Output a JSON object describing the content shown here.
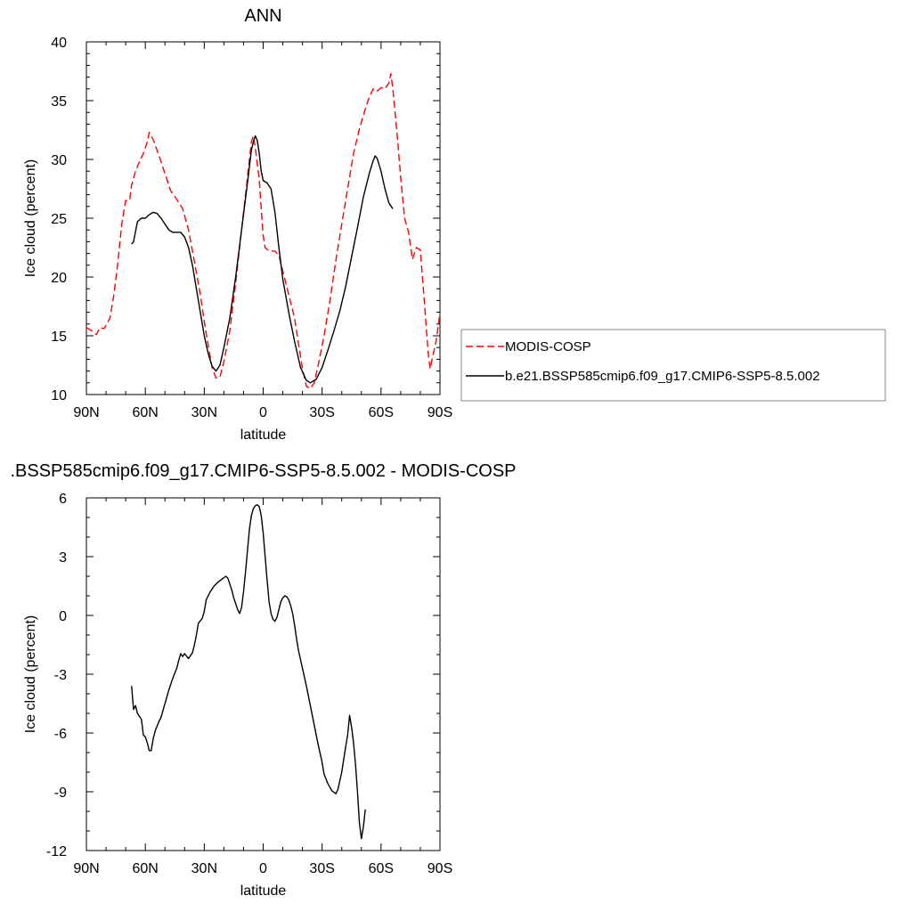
{
  "chart_data": [
    {
      "type": "line",
      "title": "ANN",
      "xlabel": "latitude",
      "ylabel": "Ice cloud (percent)",
      "xlim": [
        90,
        -90
      ],
      "ylim": [
        10,
        40
      ],
      "x_ticks": [
        90,
        60,
        30,
        0,
        -30,
        -60,
        -90
      ],
      "x_tick_labels": [
        "90N",
        "60N",
        "30N",
        "0",
        "30S",
        "60S",
        "90S"
      ],
      "y_ticks": [
        10,
        15,
        20,
        25,
        30,
        35,
        40
      ],
      "y_tick_labels": [
        "10",
        "15",
        "20",
        "25",
        "30",
        "35",
        "40"
      ],
      "legend_position": "right",
      "series": [
        {
          "name": "MODIS-COSP",
          "color": "#ff0000",
          "dash": "dashed",
          "points": [
            [
              90,
              15.7
            ],
            [
              87,
              15.4
            ],
            [
              85,
              15.1
            ],
            [
              83,
              15.7
            ],
            [
              81,
              15.6
            ],
            [
              78,
              16.5
            ],
            [
              76,
              18.5
            ],
            [
              74,
              21.2
            ],
            [
              72,
              24.5
            ],
            [
              70,
              26.5
            ],
            [
              68,
              26.5
            ],
            [
              67,
              27.8
            ],
            [
              65,
              29.0
            ],
            [
              63,
              29.8
            ],
            [
              61,
              30.5
            ],
            [
              59,
              31.5
            ],
            [
              58,
              32.3
            ],
            [
              56,
              31.7
            ],
            [
              53,
              30.3
            ],
            [
              50,
              28.8
            ],
            [
              47,
              27.3
            ],
            [
              44,
              26.6
            ],
            [
              41,
              25.8
            ],
            [
              38,
              24.0
            ],
            [
              35,
              21.3
            ],
            [
              32,
              18.5
            ],
            [
              30,
              16.2
            ],
            [
              28,
              14.2
            ],
            [
              26,
              12.3
            ],
            [
              24,
              11.4
            ],
            [
              22,
              11.5
            ],
            [
              20,
              12.8
            ],
            [
              17,
              15.4
            ],
            [
              14,
              19.5
            ],
            [
              11,
              24.0
            ],
            [
              8,
              28.5
            ],
            [
              6,
              31.5
            ],
            [
              5,
              32.0
            ],
            [
              4,
              31.0
            ],
            [
              3,
              29.6
            ],
            [
              2,
              28.3
            ],
            [
              1,
              25.8
            ],
            [
              0,
              23.5
            ],
            [
              -1,
              22.5
            ],
            [
              -3,
              22.2
            ],
            [
              -6,
              22.2
            ],
            [
              -8,
              21.8
            ],
            [
              -10,
              20.5
            ],
            [
              -13,
              18.5
            ],
            [
              -16,
              16.5
            ],
            [
              -18,
              14.3
            ],
            [
              -20,
              12.2
            ],
            [
              -22,
              10.7
            ],
            [
              -24,
              10.5
            ],
            [
              -26,
              11.0
            ],
            [
              -28,
              12.5
            ],
            [
              -31,
              15.0
            ],
            [
              -34,
              18.0
            ],
            [
              -37,
              21.4
            ],
            [
              -40,
              24.5
            ],
            [
              -43,
              27.5
            ],
            [
              -46,
              30.5
            ],
            [
              -49,
              32.6
            ],
            [
              -52,
              34.3
            ],
            [
              -54,
              35.3
            ],
            [
              -56,
              36.0
            ],
            [
              -58,
              35.8
            ],
            [
              -60,
              36.1
            ],
            [
              -62,
              36.0
            ],
            [
              -64,
              36.5
            ],
            [
              -65,
              37.3
            ],
            [
              -66,
              36.0
            ],
            [
              -68,
              32.5
            ],
            [
              -70,
              28.5
            ],
            [
              -72,
              25.0
            ],
            [
              -74,
              23.8
            ],
            [
              -76,
              21.5
            ],
            [
              -78,
              22.5
            ],
            [
              -80,
              22.3
            ],
            [
              -82,
              18.0
            ],
            [
              -84,
              13.5
            ],
            [
              -85,
              12.2
            ],
            [
              -86,
              13.0
            ],
            [
              -88,
              14.5
            ],
            [
              -90,
              16.9
            ]
          ]
        },
        {
          "name": "b.e21.BSSP585cmip6.f09_g17.CMIP6-SSP5-8.5.002",
          "color": "#000000",
          "dash": "solid",
          "points": [
            [
              67,
              22.8
            ],
            [
              66,
              23.0
            ],
            [
              64,
              24.7
            ],
            [
              62,
              25.0
            ],
            [
              60,
              25.0
            ],
            [
              58,
              25.3
            ],
            [
              56,
              25.5
            ],
            [
              54,
              25.4
            ],
            [
              52,
              25.0
            ],
            [
              50,
              24.5
            ],
            [
              48,
              24.0
            ],
            [
              46,
              23.8
            ],
            [
              44,
              23.8
            ],
            [
              42,
              23.8
            ],
            [
              40,
              23.4
            ],
            [
              38,
              22.5
            ],
            [
              36,
              21.0
            ],
            [
              34,
              19.0
            ],
            [
              32,
              17.0
            ],
            [
              30,
              15.0
            ],
            [
              28,
              13.5
            ],
            [
              26,
              12.4
            ],
            [
              24,
              12.0
            ],
            [
              22,
              12.5
            ],
            [
              20,
              14.0
            ],
            [
              17,
              16.5
            ],
            [
              14,
              20.0
            ],
            [
              11,
              24.0
            ],
            [
              8,
              28.0
            ],
            [
              6,
              30.8
            ],
            [
              5,
              31.5
            ],
            [
              4,
              32.0
            ],
            [
              3,
              31.6
            ],
            [
              2,
              30.5
            ],
            [
              1,
              29.0
            ],
            [
              0,
              28.2
            ],
            [
              -2,
              28.0
            ],
            [
              -4,
              27.5
            ],
            [
              -6,
              25.5
            ],
            [
              -8,
              22.5
            ],
            [
              -10,
              19.8
            ],
            [
              -13,
              17.0
            ],
            [
              -16,
              14.5
            ],
            [
              -19,
              12.3
            ],
            [
              -22,
              11.2
            ],
            [
              -24,
              11.0
            ],
            [
              -27,
              11.3
            ],
            [
              -30,
              12.3
            ],
            [
              -33,
              13.8
            ],
            [
              -36,
              15.4
            ],
            [
              -39,
              17.1
            ],
            [
              -42,
              19.2
            ],
            [
              -45,
              21.7
            ],
            [
              -48,
              24.2
            ],
            [
              -51,
              26.8
            ],
            [
              -54,
              28.8
            ],
            [
              -56,
              29.9
            ],
            [
              -57,
              30.3
            ],
            [
              -58,
              30.1
            ],
            [
              -60,
              29.0
            ],
            [
              -62,
              27.5
            ],
            [
              -64,
              26.3
            ],
            [
              -66,
              25.8
            ]
          ]
        }
      ]
    },
    {
      "type": "line",
      "title": ".BSSP585cmip6.f09_g17.CMIP6-SSP5-8.5.002 - MODIS-COSP",
      "xlabel": "latitude",
      "ylabel": "Ice cloud (percent)",
      "xlim": [
        90,
        -90
      ],
      "ylim": [
        -12,
        6
      ],
      "x_ticks": [
        90,
        60,
        30,
        0,
        -30,
        -60,
        -90
      ],
      "x_tick_labels": [
        "90N",
        "60N",
        "30N",
        "0",
        "30S",
        "60S",
        "90S"
      ],
      "y_ticks": [
        -12,
        -9,
        -6,
        -3,
        0,
        3,
        6
      ],
      "y_tick_labels": [
        "-12",
        "-9",
        "-6",
        "-3",
        "0",
        "3",
        "6"
      ],
      "series": [
        {
          "color": "#000000",
          "dash": "solid",
          "points": [
            [
              67,
              -3.6
            ],
            [
              66,
              -4.8
            ],
            [
              65,
              -4.6
            ],
            [
              64,
              -5.0
            ],
            [
              62,
              -5.3
            ],
            [
              61,
              -6.1
            ],
            [
              60,
              -6.2
            ],
            [
              59,
              -6.5
            ],
            [
              58,
              -6.9
            ],
            [
              57,
              -6.9
            ],
            [
              56,
              -6.3
            ],
            [
              55,
              -5.9
            ],
            [
              53,
              -5.4
            ],
            [
              52,
              -5.2
            ],
            [
              50,
              -4.5
            ],
            [
              48,
              -3.8
            ],
            [
              46,
              -3.2
            ],
            [
              44,
              -2.7
            ],
            [
              43,
              -2.3
            ],
            [
              42,
              -1.95
            ],
            [
              41,
              -2.1
            ],
            [
              40,
              -1.95
            ],
            [
              38,
              -2.2
            ],
            [
              36,
              -1.9
            ],
            [
              35,
              -1.5
            ],
            [
              34,
              -1.0
            ],
            [
              33,
              -0.4
            ],
            [
              31,
              -0.15
            ],
            [
              30,
              0.2
            ],
            [
              29,
              0.8
            ],
            [
              27,
              1.2
            ],
            [
              25,
              1.5
            ],
            [
              23,
              1.7
            ],
            [
              21,
              1.85
            ],
            [
              19,
              2.0
            ],
            [
              18,
              1.9
            ],
            [
              17,
              1.6
            ],
            [
              16,
              1.3
            ],
            [
              15,
              0.9
            ],
            [
              14,
              0.6
            ],
            [
              13,
              0.3
            ],
            [
              12,
              0.1
            ],
            [
              11,
              0.4
            ],
            [
              10,
              1.2
            ],
            [
              9,
              2.2
            ],
            [
              8,
              3.3
            ],
            [
              7,
              4.4
            ],
            [
              6,
              5.1
            ],
            [
              5,
              5.45
            ],
            [
              4,
              5.6
            ],
            [
              3,
              5.65
            ],
            [
              2,
              5.55
            ],
            [
              1,
              5.1
            ],
            [
              0,
              4.2
            ],
            [
              -1,
              3.0
            ],
            [
              -2,
              1.8
            ],
            [
              -3,
              0.7
            ],
            [
              -4,
              0.1
            ],
            [
              -5,
              -0.2
            ],
            [
              -6,
              -0.3
            ],
            [
              -7,
              -0.1
            ],
            [
              -8,
              0.3
            ],
            [
              -9,
              0.7
            ],
            [
              -10,
              0.9
            ],
            [
              -11,
              1.0
            ],
            [
              -12,
              0.95
            ],
            [
              -13,
              0.8
            ],
            [
              -14,
              0.5
            ],
            [
              -15,
              0.1
            ],
            [
              -16,
              -0.5
            ],
            [
              -17,
              -1.2
            ],
            [
              -18,
              -1.8
            ],
            [
              -20,
              -2.7
            ],
            [
              -22,
              -3.6
            ],
            [
              -24,
              -4.6
            ],
            [
              -26,
              -5.6
            ],
            [
              -28,
              -6.6
            ],
            [
              -30,
              -7.5
            ],
            [
              -31,
              -8.1
            ],
            [
              -33,
              -8.6
            ],
            [
              -35,
              -8.95
            ],
            [
              -37,
              -9.1
            ],
            [
              -38,
              -8.9
            ],
            [
              -40,
              -8.0
            ],
            [
              -42,
              -6.7
            ],
            [
              -43,
              -6.1
            ],
            [
              -44,
              -5.1
            ],
            [
              -45,
              -5.7
            ],
            [
              -46,
              -6.5
            ],
            [
              -47,
              -7.6
            ],
            [
              -48,
              -9.0
            ],
            [
              -49,
              -10.6
            ],
            [
              -50,
              -11.4
            ],
            [
              -51,
              -10.8
            ],
            [
              -52,
              -9.9
            ]
          ]
        }
      ]
    }
  ]
}
